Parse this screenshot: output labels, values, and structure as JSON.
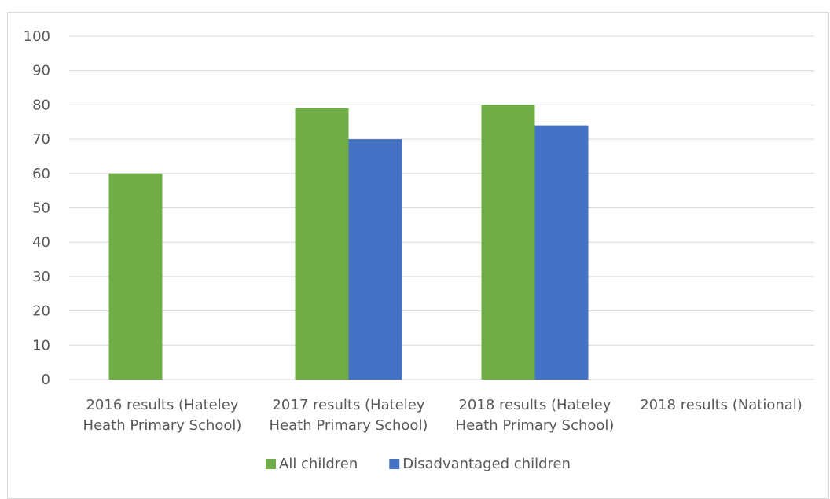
{
  "chart_data": {
    "type": "bar",
    "categories": [
      [
        "2016 results   (Hateley",
        "Heath Primary School)"
      ],
      [
        "2017 results (Hateley",
        "Heath Primary School)"
      ],
      [
        "2018 results (Hateley",
        "Heath Primary School)"
      ],
      [
        "2018 results (National)"
      ]
    ],
    "series": [
      {
        "name": "All children",
        "color": "#70ad47",
        "values": [
          60,
          79,
          80,
          null
        ]
      },
      {
        "name": "Disadvantaged children",
        "color": "#4472c4",
        "values": [
          null,
          70,
          74,
          null
        ]
      }
    ],
    "ylim": [
      0,
      100
    ],
    "yticks": [
      0,
      10,
      20,
      30,
      40,
      50,
      60,
      70,
      80,
      90,
      100
    ],
    "grid": true,
    "gridline_color": "#d9d9d9",
    "axis_text_color": "#595959",
    "legend_position": "bottom"
  }
}
